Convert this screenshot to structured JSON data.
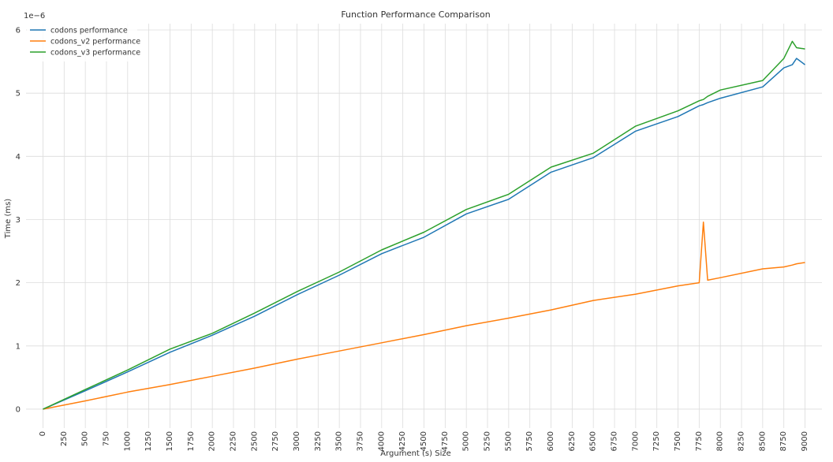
{
  "chart_data": {
    "type": "line",
    "title": "Function Performance Comparison",
    "xlabel": "Argument (s) Size",
    "ylabel": "Time (ms)",
    "y_exponent_label": "1e−6",
    "xlim": [
      -200,
      9200
    ],
    "ylim": [
      -0.3,
      6.1
    ],
    "xticks": [
      0,
      250,
      500,
      750,
      1000,
      1250,
      1500,
      1750,
      2000,
      2250,
      2500,
      2750,
      3000,
      3250,
      3500,
      3750,
      4000,
      4250,
      4500,
      4750,
      5000,
      5250,
      5500,
      5750,
      6000,
      6250,
      6500,
      6750,
      7000,
      7250,
      7500,
      7750,
      8000,
      8250,
      8500,
      8750,
      9000
    ],
    "yticks": [
      0,
      1,
      2,
      3,
      4,
      5,
      6
    ],
    "grid": true,
    "legend_position": "top-left",
    "x": [
      0,
      500,
      1000,
      1500,
      2000,
      2500,
      3000,
      3500,
      4000,
      4500,
      5000,
      5500,
      6000,
      6500,
      7000,
      7500,
      7750,
      7800,
      7850,
      8000,
      8500,
      8750,
      8850,
      8900,
      9000
    ],
    "series": [
      {
        "name": "codons performance",
        "color": "#1f77b4",
        "values": [
          0.0,
          0.29,
          0.59,
          0.9,
          1.17,
          1.47,
          1.81,
          2.12,
          2.46,
          2.72,
          3.09,
          3.32,
          3.75,
          3.98,
          4.4,
          4.63,
          4.8,
          4.82,
          4.85,
          4.92,
          5.1,
          5.4,
          5.45,
          5.55,
          5.45
        ]
      },
      {
        "name": "codons_v2 performance",
        "color": "#ff7f0e",
        "values": [
          0.0,
          0.13,
          0.27,
          0.39,
          0.52,
          0.65,
          0.79,
          0.92,
          1.05,
          1.18,
          1.32,
          1.44,
          1.57,
          1.72,
          1.82,
          1.95,
          2.0,
          2.96,
          2.04,
          2.08,
          2.22,
          2.25,
          2.28,
          2.3,
          2.32
        ]
      },
      {
        "name": "codons_v3 performance",
        "color": "#2ca02c",
        "values": [
          0.0,
          0.31,
          0.62,
          0.95,
          1.2,
          1.52,
          1.86,
          2.17,
          2.52,
          2.8,
          3.16,
          3.4,
          3.83,
          4.05,
          4.48,
          4.72,
          4.88,
          4.9,
          4.95,
          5.05,
          5.2,
          5.55,
          5.82,
          5.72,
          5.7
        ]
      }
    ]
  }
}
